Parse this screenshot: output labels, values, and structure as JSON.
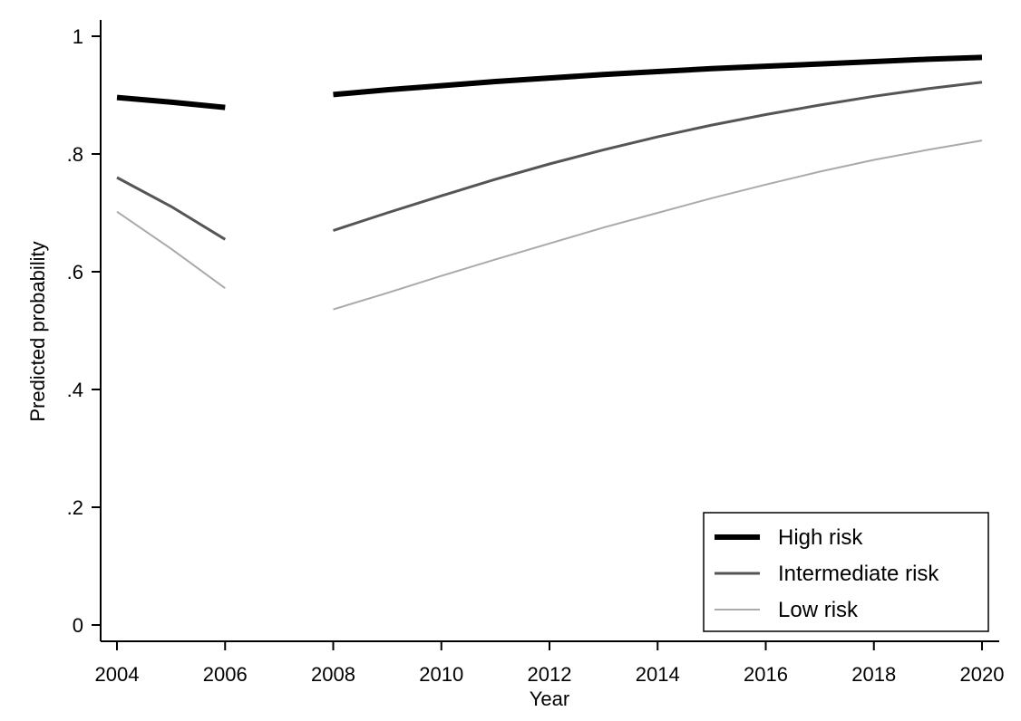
{
  "chart_data": {
    "type": "line",
    "xlabel": "Year",
    "ylabel": "Predicted probability",
    "xlim": [
      2004,
      2020
    ],
    "ylim": [
      0,
      1
    ],
    "x_ticks": [
      2004,
      2006,
      2008,
      2010,
      2012,
      2014,
      2016,
      2018,
      2020
    ],
    "y_ticks": [
      {
        "value": 0,
        "label": "0"
      },
      {
        "value": 0.2,
        "label": ".2"
      },
      {
        "value": 0.4,
        "label": ".4"
      },
      {
        "value": 0.6,
        "label": ".6"
      },
      {
        "value": 0.8,
        "label": ".8"
      },
      {
        "value": 1,
        "label": "1"
      }
    ],
    "grid": false,
    "legend_position": "bottom-right",
    "series": [
      {
        "name": "High risk",
        "color": "#000000",
        "segments": [
          {
            "x": [
              2004,
              2005,
              2006
            ],
            "y": [
              0.896,
              0.888,
              0.879
            ]
          },
          {
            "x": [
              2008,
              2009,
              2010,
              2011,
              2012,
              2013,
              2014,
              2015,
              2016,
              2017,
              2018,
              2019,
              2020
            ],
            "y": [
              0.901,
              0.909,
              0.916,
              0.923,
              0.929,
              0.935,
              0.94,
              0.945,
              0.949,
              0.953,
              0.957,
              0.961,
              0.964
            ]
          }
        ]
      },
      {
        "name": "Intermediate risk",
        "color": "#555555",
        "segments": [
          {
            "x": [
              2004,
              2005,
              2006
            ],
            "y": [
              0.76,
              0.711,
              0.655
            ]
          },
          {
            "x": [
              2008,
              2009,
              2010,
              2011,
              2012,
              2013,
              2014,
              2015,
              2016,
              2017,
              2018,
              2019,
              2020
            ],
            "y": [
              0.67,
              0.7,
              0.729,
              0.757,
              0.783,
              0.807,
              0.829,
              0.849,
              0.867,
              0.883,
              0.898,
              0.911,
              0.922
            ]
          }
        ]
      },
      {
        "name": "Low risk",
        "color": "#aaaaaa",
        "segments": [
          {
            "x": [
              2004,
              2005,
              2006
            ],
            "y": [
              0.702,
              0.639,
              0.572
            ]
          },
          {
            "x": [
              2008,
              2009,
              2010,
              2011,
              2012,
              2013,
              2014,
              2015,
              2016,
              2017,
              2018,
              2019,
              2020
            ],
            "y": [
              0.536,
              0.564,
              0.593,
              0.621,
              0.648,
              0.675,
              0.7,
              0.725,
              0.748,
              0.77,
              0.79,
              0.807,
              0.823
            ]
          }
        ]
      }
    ]
  }
}
